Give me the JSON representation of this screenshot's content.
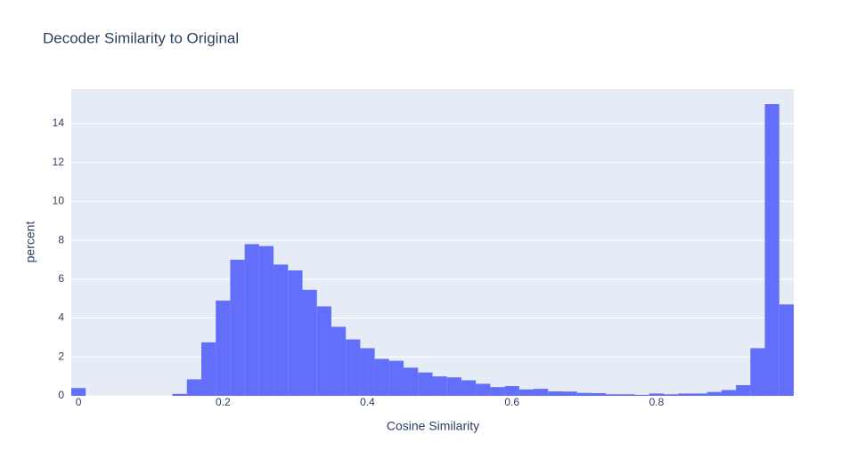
{
  "chart_data": {
    "type": "histogram",
    "title": "Decoder Similarity to Original",
    "x_label": "Cosine Similarity",
    "y_label": "percent",
    "bins": [
      -0.01,
      0.01,
      0.03,
      0.05,
      0.07,
      0.09,
      0.11,
      0.13,
      0.15,
      0.17,
      0.19,
      0.21,
      0.23,
      0.25,
      0.27,
      0.29,
      0.31,
      0.33,
      0.35,
      0.37,
      0.39,
      0.41,
      0.43,
      0.45,
      0.47,
      0.49,
      0.51,
      0.53,
      0.55,
      0.57,
      0.59,
      0.61,
      0.63,
      0.65,
      0.67,
      0.69,
      0.71,
      0.73,
      0.75,
      0.77,
      0.79,
      0.81,
      0.83,
      0.85,
      0.87,
      0.89,
      0.91,
      0.93,
      0.95,
      0.97,
      0.99
    ],
    "values": [
      0.4,
      0,
      0,
      0,
      0,
      0,
      0,
      0.1,
      0.85,
      2.75,
      4.9,
      7.0,
      7.8,
      7.7,
      6.75,
      6.45,
      5.45,
      4.6,
      3.55,
      2.9,
      2.45,
      1.9,
      1.8,
      1.45,
      1.2,
      1.0,
      0.95,
      0.8,
      0.62,
      0.45,
      0.5,
      0.33,
      0.36,
      0.23,
      0.22,
      0.15,
      0.14,
      0.08,
      0.08,
      0.05,
      0.12,
      0.08,
      0.12,
      0.12,
      0.2,
      0.3,
      0.55,
      2.45,
      15.0,
      4.7
    ],
    "color": "#636efa",
    "xlim": [
      -0.01,
      0.99
    ],
    "xticks": [
      0,
      0.2,
      0.4,
      0.6,
      0.8
    ],
    "ylim": [
      0,
      15.78
    ],
    "yticks": [
      0,
      2,
      4,
      6,
      8,
      10,
      12,
      14
    ],
    "grid": true
  }
}
